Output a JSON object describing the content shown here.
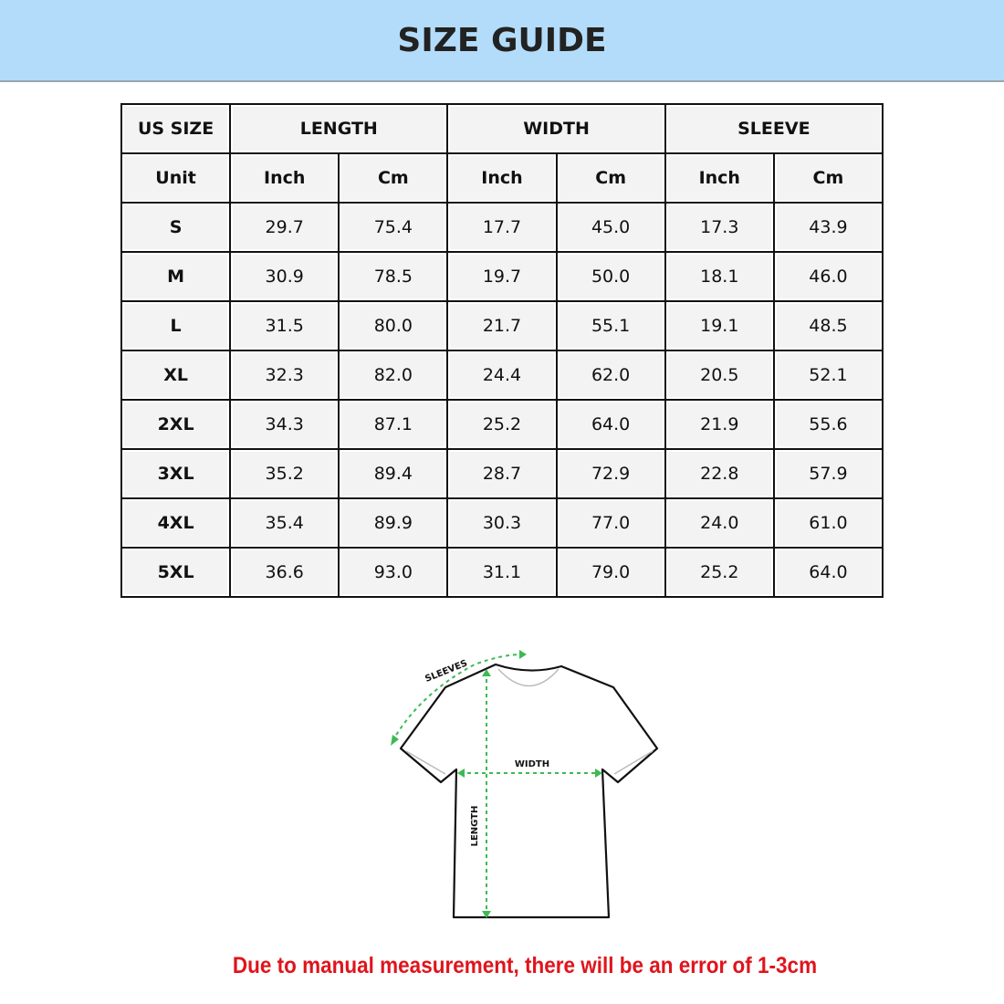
{
  "title": "SIZE GUIDE",
  "table": {
    "group_headers": [
      "US SIZE",
      "LENGTH",
      "WIDTH",
      "SLEEVE"
    ],
    "unit_label": "Unit",
    "units": [
      "Inch",
      "Cm",
      "Inch",
      "Cm",
      "Inch",
      "Cm"
    ],
    "rows": [
      {
        "size": "S",
        "values": [
          "29.7",
          "75.4",
          "17.7",
          "45.0",
          "17.3",
          "43.9"
        ]
      },
      {
        "size": "M",
        "values": [
          "30.9",
          "78.5",
          "19.7",
          "50.0",
          "18.1",
          "46.0"
        ]
      },
      {
        "size": "L",
        "values": [
          "31.5",
          "80.0",
          "21.7",
          "55.1",
          "19.1",
          "48.5"
        ]
      },
      {
        "size": "XL",
        "values": [
          "32.3",
          "82.0",
          "24.4",
          "62.0",
          "20.5",
          "52.1"
        ]
      },
      {
        "size": "2XL",
        "values": [
          "34.3",
          "87.1",
          "25.2",
          "64.0",
          "21.9",
          "55.6"
        ]
      },
      {
        "size": "3XL",
        "values": [
          "35.2",
          "89.4",
          "28.7",
          "72.9",
          "22.8",
          "57.9"
        ]
      },
      {
        "size": "4XL",
        "values": [
          "35.4",
          "89.9",
          "30.3",
          "77.0",
          "24.0",
          "61.0"
        ]
      },
      {
        "size": "5XL",
        "values": [
          "36.6",
          "93.0",
          "31.1",
          "79.0",
          "25.2",
          "64.0"
        ]
      }
    ]
  },
  "diagram": {
    "sleeves_label": "SLEEVES",
    "width_label": "WIDTH",
    "length_label": "LENGTH",
    "arrow_color": "#3cba54"
  },
  "note": "Due to manual measurement, there will be an error of 1-3cm",
  "colors": {
    "header_bg": "#b3dcfa",
    "note": "#e0141c"
  }
}
